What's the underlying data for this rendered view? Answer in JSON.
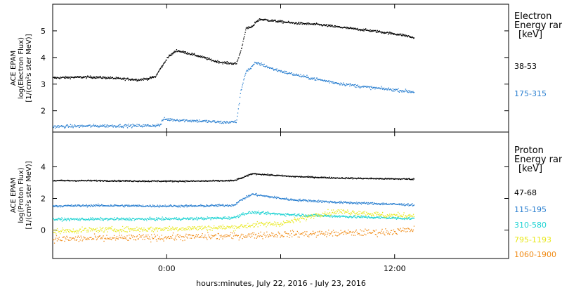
{
  "chart_data": [
    {
      "type": "scatter",
      "panel": "electron",
      "ylabel": [
        "ACE EPAM",
        "log(Electron Flux)",
        "[1/(cm²s ster MeV)]"
      ],
      "legend_title": [
        "Electron",
        "Energy range",
        "[keV]"
      ],
      "ylim": [
        1.2,
        6.0
      ],
      "y_ticks": [
        2,
        3,
        4,
        5
      ],
      "series": [
        {
          "name": "38-53",
          "color": "#000000",
          "x": [
            0,
            2,
            4,
            6,
            7,
            8,
            9,
            10,
            10.8,
            11.2,
            11.7,
            12,
            13,
            14.5,
            16,
            17,
            18,
            19.3,
            19.8,
            20.3,
            20.8,
            21.1,
            21.3,
            21.8,
            23,
            25,
            28,
            31,
            34,
            37,
            38
          ],
          "y": [
            3.25,
            3.27,
            3.28,
            3.25,
            3.22,
            3.2,
            3.18,
            3.22,
            3.3,
            3.55,
            3.8,
            4.0,
            4.28,
            4.15,
            4.0,
            3.88,
            3.82,
            3.78,
            4.3,
            5.1,
            5.15,
            5.2,
            5.35,
            5.45,
            5.4,
            5.32,
            5.25,
            5.12,
            5.0,
            4.85,
            4.75
          ],
          "scatter_sd": 0.03,
          "points_per_hour": 22
        },
        {
          "name": "175-315",
          "color": "#2a7fd0",
          "x": [
            0,
            3,
            6,
            9,
            10.5,
            11.3,
            11.6,
            14,
            16,
            18,
            19.3,
            19.8,
            20.3,
            20.8,
            21.3,
            22,
            23,
            24.5,
            27,
            30,
            33,
            36,
            38
          ],
          "y": [
            1.42,
            1.44,
            1.45,
            1.45,
            1.46,
            1.48,
            1.7,
            1.65,
            1.62,
            1.58,
            1.6,
            2.8,
            3.5,
            3.6,
            3.82,
            3.75,
            3.6,
            3.45,
            3.25,
            3.05,
            2.9,
            2.8,
            2.72
          ],
          "scatter_sd": 0.04,
          "points_per_hour": 18
        }
      ]
    },
    {
      "type": "scatter",
      "panel": "proton",
      "ylabel": [
        "ACE EPAM",
        "log(Proton Flux)",
        "[1/(cm²s ster MeV)]"
      ],
      "legend_title": [
        "Proton",
        "Energy range",
        "[keV]"
      ],
      "ylim": [
        -1.8,
        6.2
      ],
      "y_ticks": [
        0,
        2,
        4
      ],
      "series": [
        {
          "name": "47-68",
          "color": "#000000",
          "x": [
            0,
            5,
            10,
            15,
            19,
            20,
            21,
            22,
            25,
            30,
            35,
            38
          ],
          "y": [
            3.15,
            3.15,
            3.12,
            3.12,
            3.15,
            3.35,
            3.6,
            3.55,
            3.42,
            3.32,
            3.27,
            3.25
          ],
          "scatter_sd": 0.03,
          "points_per_hour": 20
        },
        {
          "name": "115-195",
          "color": "#2a7fd0",
          "x": [
            0,
            5,
            10,
            15,
            19,
            20,
            21,
            22,
            25,
            30,
            35,
            38
          ],
          "y": [
            1.55,
            1.58,
            1.55,
            1.55,
            1.6,
            2.0,
            2.3,
            2.2,
            1.95,
            1.78,
            1.68,
            1.62
          ],
          "scatter_sd": 0.05,
          "points_per_hour": 20
        },
        {
          "name": "310-580",
          "color": "#1fd3d3",
          "x": [
            0,
            5,
            10,
            15,
            19,
            20,
            21,
            22,
            25,
            30,
            35,
            38
          ],
          "y": [
            0.7,
            0.72,
            0.72,
            0.75,
            0.8,
            1.05,
            1.15,
            1.1,
            1.0,
            0.9,
            0.8,
            0.75
          ],
          "scatter_sd": 0.06,
          "points_per_hour": 20
        },
        {
          "name": "795-1193",
          "color": "#e8e81a",
          "x": [
            0,
            5,
            10,
            15,
            19,
            21,
            24,
            26,
            28,
            30,
            33,
            35,
            38
          ],
          "y": [
            -0.05,
            0.05,
            0.08,
            0.15,
            0.2,
            0.35,
            0.45,
            0.7,
            1.05,
            1.2,
            1.1,
            0.95,
            0.95
          ],
          "scatter_sd": 0.12,
          "points_per_hour": 16
        },
        {
          "name": "1060-1900",
          "color": "#f08a14",
          "x": [
            0,
            5,
            10,
            15,
            19,
            21,
            24,
            28,
            32,
            35,
            38
          ],
          "y": [
            -0.55,
            -0.5,
            -0.45,
            -0.4,
            -0.35,
            -0.3,
            -0.25,
            -0.2,
            -0.15,
            -0.1,
            0.05
          ],
          "scatter_sd": 0.15,
          "points_per_hour": 14
        }
      ]
    }
  ],
  "x_axis": {
    "label": "hours:minutes, July 22, 2016 - July 23, 2016",
    "range_hours": [
      0,
      48
    ],
    "ticks": [
      {
        "hour": 12,
        "label": "0:00"
      },
      {
        "hour": 24,
        "label": ""
      },
      {
        "hour": 36,
        "label": "12:00"
      }
    ],
    "data_end_hour": 38
  }
}
